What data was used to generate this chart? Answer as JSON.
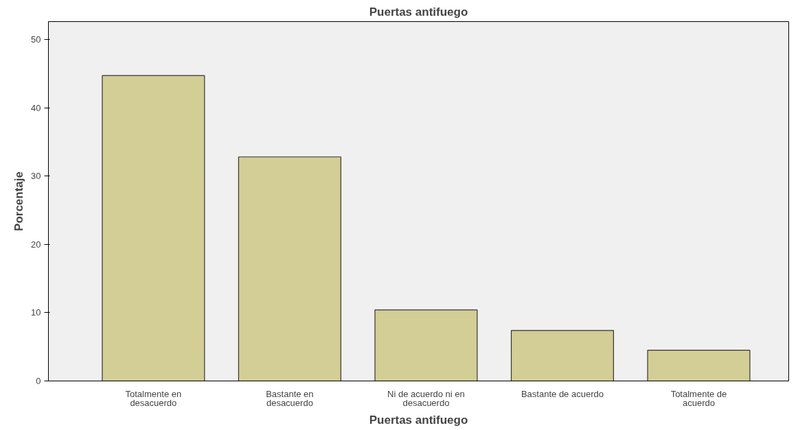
{
  "chart_data": {
    "type": "bar",
    "title": "Puertas antifuego",
    "xlabel": "Puertas antifuego",
    "ylabel": "Porcentaje",
    "categories": [
      "Totalmente en desacuerdo",
      "Bastante en desacuerdo",
      "Ni de acuerdo ni en desacuerdo",
      "Bastante de acuerdo",
      "Totalmente de acuerdo"
    ],
    "values": [
      44.7,
      32.8,
      10.4,
      7.4,
      4.5
    ],
    "color": "#d3cd96",
    "ylim": [
      0,
      52.6
    ],
    "yticks": [
      0,
      10,
      20,
      30,
      40,
      50
    ],
    "grid": false
  }
}
